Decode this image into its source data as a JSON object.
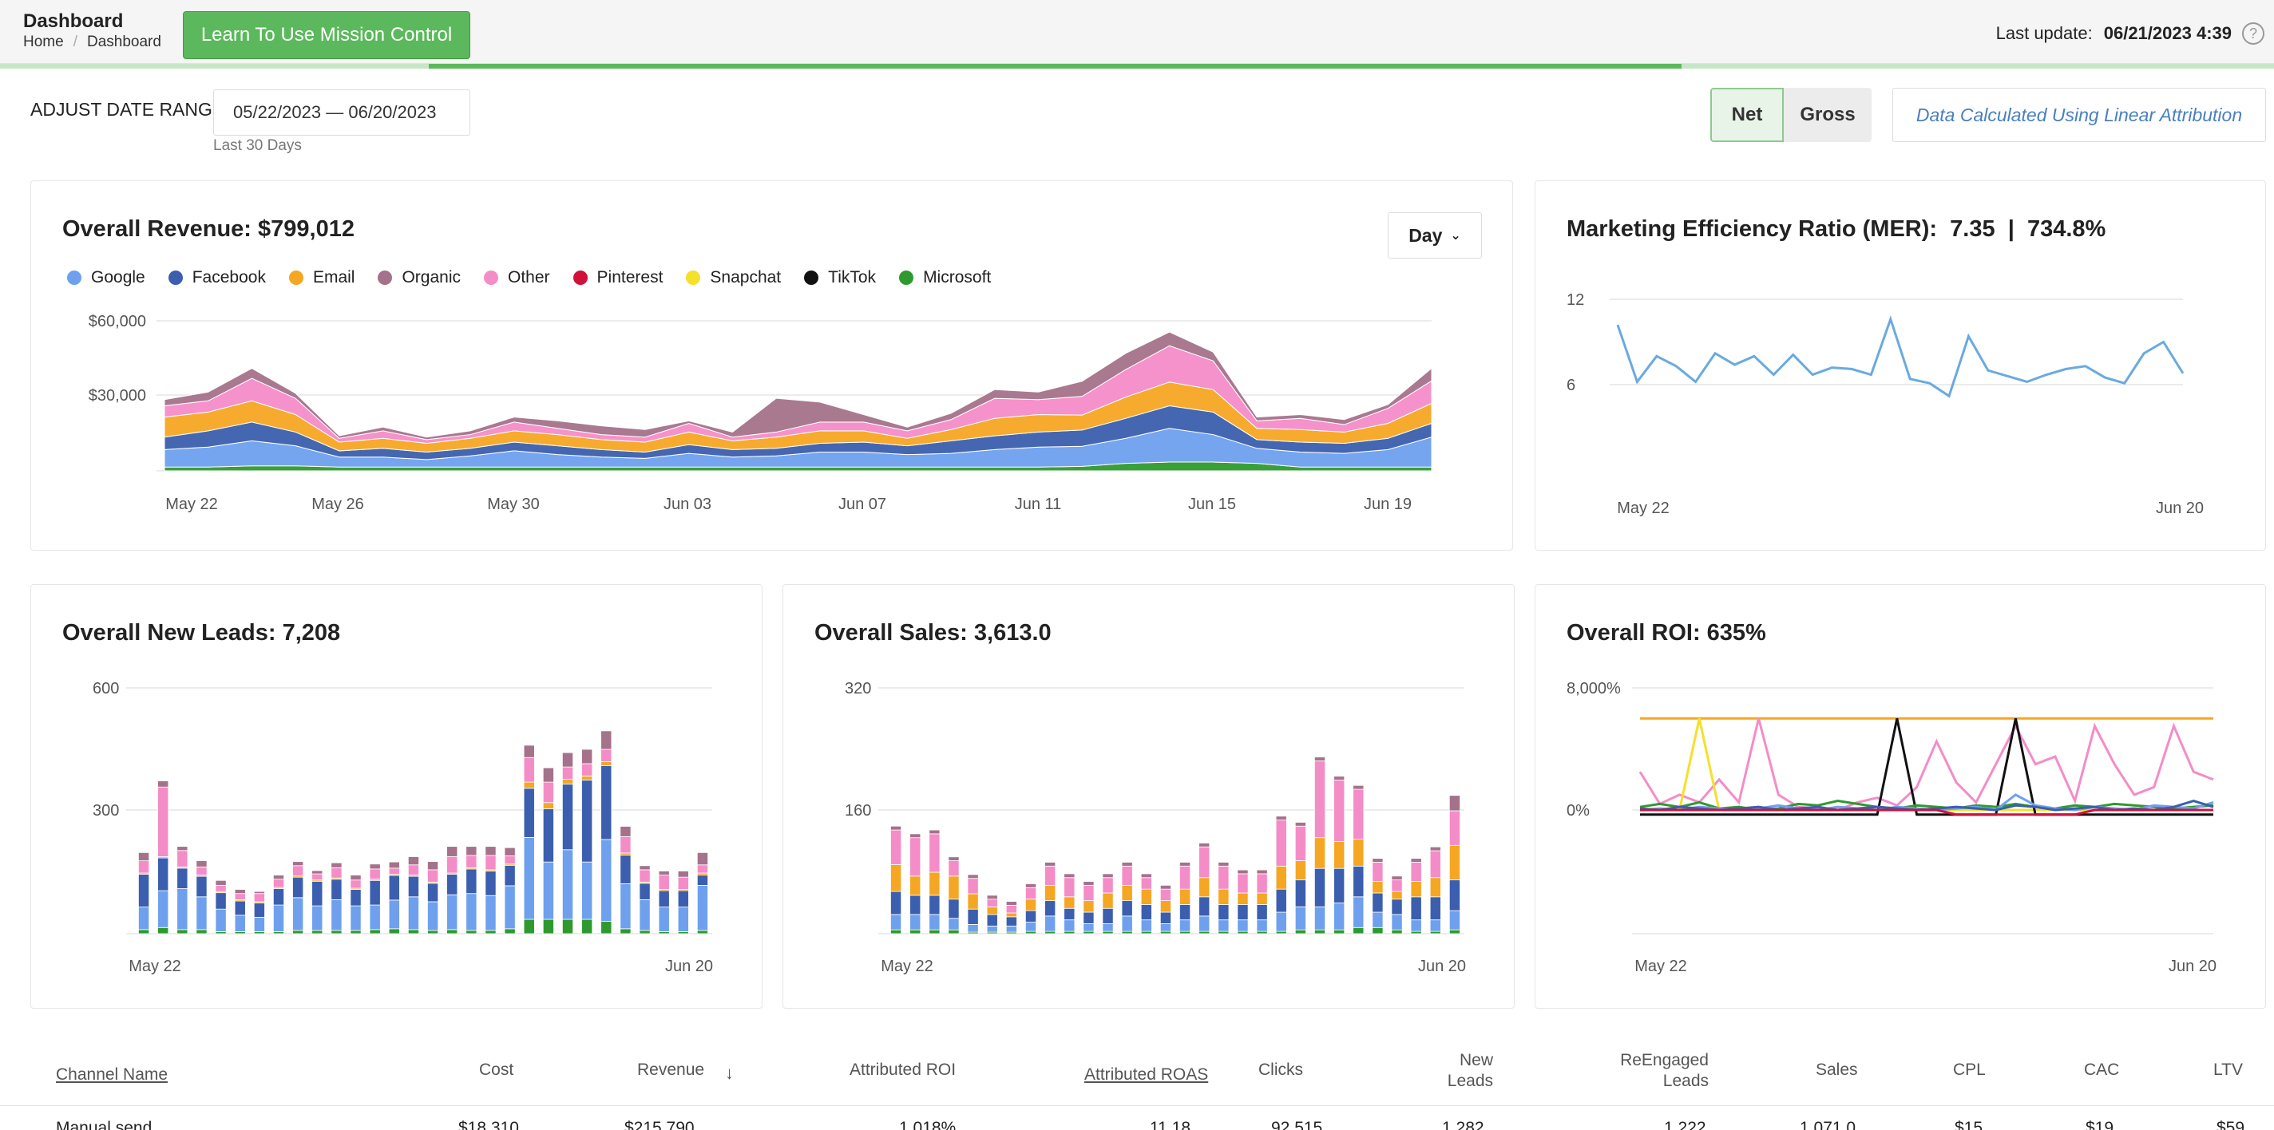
{
  "header": {
    "title": "Dashboard",
    "breadcrumb": [
      "Home",
      "Dashboard"
    ],
    "learn_button": "Learn To Use Mission Control",
    "last_update_label": "Last update:",
    "last_update_value": "06/21/2023 4:39",
    "help_icon": "question-circle-icon",
    "load_progress_fraction": 0.58
  },
  "filters": {
    "date_range_label": "ADJUST DATE RANGE:",
    "date_range_value": "05/22/2023 — 06/20/2023",
    "date_range_sub": "Last 30 Days",
    "toggle": [
      "Net",
      "Gross"
    ],
    "toggle_selected": "Net",
    "attribution_note": "Data Calculated Using Linear Attribution"
  },
  "colors": {
    "Google": "#6ea0ee",
    "Facebook": "#3b5fae",
    "Email": "#f5a623",
    "Organic": "#a4728a",
    "Other": "#f48cc8",
    "Pinterest": "#d0113a",
    "Snapchat": "#f5e02a",
    "TikTok": "#111111",
    "Microsoft": "#2e9a2e",
    "accent": "#5cb85c",
    "mer_line": "#6aaae0"
  },
  "revenue": {
    "title": "Overall Revenue: $799,012",
    "granularity": "Day",
    "legend": [
      "Google",
      "Facebook",
      "Email",
      "Organic",
      "Other",
      "Pinterest",
      "Snapchat",
      "TikTok",
      "Microsoft"
    ]
  },
  "mer": {
    "title": "Marketing Efficiency Ratio (MER):  7.35  |  734.8%"
  },
  "leads": {
    "title": "Overall New Leads: 7,208"
  },
  "sales": {
    "title": "Overall Sales: 3,613.0"
  },
  "roi": {
    "title": "Overall ROI: 635%"
  },
  "chart_data": [
    {
      "type": "area",
      "stacked": true,
      "ylim": [
        0,
        60000
      ],
      "yticks": [
        "$60,000",
        "$30,000"
      ],
      "xticks": [
        "May 22",
        "May 26",
        "May 30",
        "Jun 03",
        "Jun 07",
        "Jun 11",
        "Jun 15",
        "Jun 19"
      ],
      "x": [
        "May 22",
        "May 23",
        "May 24",
        "May 25",
        "May 26",
        "May 27",
        "May 28",
        "May 29",
        "May 30",
        "May 31",
        "Jun 01",
        "Jun 02",
        "Jun 03",
        "Jun 04",
        "Jun 05",
        "Jun 06",
        "Jun 07",
        "Jun 08",
        "Jun 09",
        "Jun 10",
        "Jun 11",
        "Jun 12",
        "Jun 13",
        "Jun 14",
        "Jun 15",
        "Jun 16",
        "Jun 17",
        "Jun 18",
        "Jun 19",
        "Jun 20"
      ],
      "series": [
        {
          "name": "Microsoft",
          "values": [
            1500,
            1500,
            2000,
            2000,
            1500,
            1500,
            1500,
            1500,
            1500,
            1500,
            1500,
            1500,
            1500,
            1500,
            1500,
            1500,
            1500,
            1500,
            1500,
            1500,
            1500,
            1800,
            3000,
            3500,
            3500,
            3000,
            1500,
            1500,
            1500,
            1500
          ]
        },
        {
          "name": "Google",
          "values": [
            7000,
            8000,
            10000,
            8000,
            4000,
            4000,
            3000,
            4500,
            6500,
            5000,
            4000,
            3500,
            5500,
            4000,
            4500,
            6000,
            6000,
            5000,
            5500,
            7000,
            8000,
            8000,
            10000,
            13500,
            11000,
            6000,
            6000,
            5500,
            7000,
            12000
          ]
        },
        {
          "name": "Facebook",
          "values": [
            5000,
            6500,
            7500,
            5500,
            2500,
            3500,
            3000,
            3000,
            3500,
            3500,
            3000,
            2500,
            3500,
            3000,
            3000,
            3500,
            4000,
            3500,
            5000,
            5500,
            6000,
            6500,
            8000,
            9000,
            9000,
            3500,
            4000,
            4000,
            4500,
            5500
          ]
        },
        {
          "name": "Email",
          "values": [
            8000,
            7500,
            8500,
            7000,
            3500,
            4000,
            3500,
            4000,
            4500,
            4500,
            4000,
            4000,
            5000,
            3500,
            4500,
            5000,
            4500,
            3000,
            4500,
            7000,
            7000,
            6000,
            8500,
            9500,
            9000,
            4500,
            5000,
            4500,
            6000,
            8000
          ]
        },
        {
          "name": "Other",
          "values": [
            4500,
            4500,
            9000,
            6500,
            1500,
            3000,
            1500,
            1500,
            3500,
            2500,
            2000,
            2000,
            3500,
            1500,
            2000,
            3500,
            3500,
            3000,
            4000,
            8000,
            6000,
            7500,
            11000,
            14500,
            11500,
            3000,
            4500,
            3000,
            6000,
            9000
          ]
        },
        {
          "name": "Organic",
          "values": [
            2500,
            3500,
            4000,
            2000,
            1000,
            1500,
            1000,
            1500,
            2000,
            3000,
            3500,
            3000,
            1000,
            2000,
            13500,
            8000,
            3000,
            1500,
            2500,
            3500,
            3000,
            6000,
            6500,
            5500,
            3500,
            1500,
            1500,
            2000,
            1500,
            5000
          ]
        }
      ]
    },
    {
      "type": "line",
      "ylim": [
        0,
        14
      ],
      "yticks": [
        "12",
        "6"
      ],
      "xticks": [
        "May 22",
        "Jun 20"
      ],
      "x_count": 30,
      "series": [
        {
          "name": "MER",
          "values": [
            10.2,
            6.2,
            8,
            7.3,
            6.2,
            8.2,
            7.4,
            8,
            6.7,
            8.1,
            6.7,
            7.2,
            7.1,
            6.7,
            10.6,
            6.4,
            6.1,
            5.2,
            9.4,
            7,
            6.6,
            6.2,
            6.7,
            7.1,
            7.3,
            6.5,
            6.1,
            8.2,
            9,
            6.8
          ]
        }
      ]
    },
    {
      "type": "bar",
      "stacked": true,
      "ylim": [
        0,
        600
      ],
      "yticks": [
        "600",
        "300"
      ],
      "xticks": [
        "May 22",
        "Jun 20"
      ],
      "x_count": 30,
      "series": [
        {
          "name": "Microsoft",
          "values": [
            10,
            15,
            10,
            10,
            5,
            5,
            5,
            5,
            8,
            8,
            8,
            8,
            10,
            12,
            10,
            8,
            10,
            8,
            8,
            12,
            35,
            35,
            35,
            35,
            30,
            12,
            8,
            5,
            5,
            8
          ]
        },
        {
          "name": "Google",
          "values": [
            55,
            90,
            100,
            80,
            55,
            40,
            35,
            65,
            80,
            60,
            75,
            60,
            60,
            70,
            80,
            70,
            85,
            90,
            85,
            105,
            200,
            140,
            170,
            140,
            200,
            110,
            75,
            60,
            60,
            110
          ]
        },
        {
          "name": "Facebook",
          "values": [
            80,
            80,
            50,
            50,
            40,
            35,
            35,
            40,
            50,
            60,
            50,
            40,
            60,
            60,
            50,
            45,
            50,
            60,
            60,
            50,
            120,
            130,
            160,
            200,
            180,
            70,
            40,
            40,
            40,
            25
          ]
        },
        {
          "name": "Email",
          "values": [
            3,
            3,
            3,
            3,
            3,
            3,
            3,
            3,
            3,
            3,
            3,
            3,
            3,
            3,
            3,
            3,
            3,
            3,
            3,
            3,
            15,
            15,
            12,
            10,
            10,
            5,
            3,
            3,
            3,
            5
          ]
        },
        {
          "name": "Other",
          "values": [
            30,
            170,
            40,
            20,
            15,
            15,
            20,
            20,
            25,
            15,
            25,
            20,
            25,
            15,
            25,
            30,
            40,
            30,
            35,
            20,
            60,
            50,
            30,
            30,
            30,
            40,
            30,
            35,
            30,
            20
          ]
        },
        {
          "name": "Organic",
          "values": [
            20,
            15,
            10,
            15,
            12,
            10,
            5,
            10,
            10,
            8,
            12,
            12,
            12,
            15,
            20,
            20,
            25,
            22,
            22,
            20,
            30,
            35,
            35,
            35,
            45,
            25,
            10,
            10,
            15,
            30
          ]
        }
      ]
    },
    {
      "type": "bar",
      "stacked": true,
      "ylim": [
        0,
        320
      ],
      "yticks": [
        "320",
        "160"
      ],
      "xticks": [
        "May 22",
        "Jun 20"
      ],
      "x_count": 30,
      "series": [
        {
          "name": "Microsoft",
          "values": [
            5,
            5,
            5,
            5,
            2,
            2,
            2,
            3,
            3,
            3,
            3,
            3,
            3,
            3,
            3,
            3,
            3,
            3,
            3,
            3,
            3,
            5,
            5,
            5,
            8,
            8,
            5,
            3,
            3,
            5
          ]
        },
        {
          "name": "Google",
          "values": [
            20,
            20,
            20,
            15,
            10,
            8,
            8,
            12,
            20,
            15,
            10,
            10,
            20,
            15,
            10,
            15,
            20,
            15,
            15,
            15,
            25,
            30,
            30,
            35,
            40,
            20,
            20,
            15,
            15,
            25
          ]
        },
        {
          "name": "Facebook",
          "values": [
            30,
            25,
            25,
            25,
            20,
            15,
            12,
            15,
            20,
            15,
            15,
            20,
            20,
            20,
            15,
            20,
            25,
            20,
            20,
            20,
            30,
            35,
            50,
            45,
            40,
            25,
            20,
            30,
            30,
            40
          ]
        },
        {
          "name": "Email",
          "values": [
            35,
            25,
            30,
            30,
            20,
            10,
            5,
            15,
            20,
            15,
            15,
            20,
            20,
            20,
            15,
            20,
            25,
            20,
            15,
            15,
            30,
            25,
            40,
            35,
            35,
            15,
            10,
            20,
            25,
            45
          ]
        },
        {
          "name": "Other",
          "values": [
            45,
            50,
            50,
            20,
            20,
            10,
            10,
            15,
            25,
            25,
            20,
            20,
            25,
            15,
            15,
            30,
            40,
            30,
            25,
            25,
            60,
            45,
            100,
            80,
            65,
            25,
            15,
            25,
            35,
            45
          ]
        },
        {
          "name": "Organic",
          "values": [
            5,
            5,
            5,
            5,
            5,
            5,
            5,
            5,
            5,
            5,
            5,
            5,
            5,
            5,
            5,
            5,
            5,
            5,
            5,
            5,
            5,
            5,
            5,
            5,
            5,
            5,
            5,
            5,
            5,
            20
          ]
        }
      ]
    },
    {
      "type": "line",
      "ylim": [
        -8000,
        8000
      ],
      "yticks": [
        "8,000%",
        "0%"
      ],
      "xticks": [
        "May 22",
        "Jun 20"
      ],
      "x_count": 30,
      "series": [
        {
          "name": "Email",
          "values": [
            6000,
            6000,
            6000,
            6000,
            6000,
            6000,
            6000,
            6000,
            6000,
            6000,
            6000,
            6000,
            6000,
            6000,
            6000,
            6000,
            6000,
            6000,
            6000,
            6000,
            6000,
            6000,
            6000,
            6000,
            6000,
            6000,
            6000,
            6000,
            6000,
            6000
          ]
        },
        {
          "name": "Other",
          "values": [
            2500,
            400,
            1000,
            500,
            2000,
            500,
            6000,
            1000,
            200,
            100,
            0,
            500,
            800,
            300,
            1500,
            4500,
            1800,
            500,
            3000,
            5500,
            3000,
            3500,
            600,
            5500,
            3000,
            1000,
            1500,
            5500,
            2500,
            2000
          ]
        },
        {
          "name": "Snapchat",
          "values": [
            0,
            0,
            0,
            6000,
            0,
            0,
            0,
            0,
            0,
            0,
            0,
            0,
            0,
            0,
            0,
            0,
            0,
            0,
            0,
            0,
            0,
            0,
            0,
            0,
            0,
            0,
            0,
            0,
            0,
            0
          ]
        },
        {
          "name": "TikTok",
          "values": [
            -300,
            -300,
            -300,
            -300,
            -300,
            -300,
            -300,
            -300,
            -300,
            -300,
            -300,
            -300,
            -300,
            6000,
            -300,
            -300,
            -300,
            -300,
            -300,
            6000,
            -300,
            -300,
            -300,
            -300,
            -300,
            -300,
            -300,
            -300,
            -300,
            -300
          ]
        },
        {
          "name": "Microsoft",
          "values": [
            200,
            400,
            200,
            500,
            100,
            200,
            0,
            100,
            400,
            300,
            600,
            400,
            200,
            100,
            300,
            200,
            100,
            300,
            200,
            400,
            200,
            100,
            300,
            200,
            400,
            300,
            200,
            100,
            200,
            300
          ]
        },
        {
          "name": "Google",
          "values": [
            0,
            100,
            0,
            200,
            100,
            0,
            100,
            300,
            100,
            0,
            200,
            100,
            0,
            200,
            100,
            0,
            100,
            200,
            0,
            1000,
            300,
            100,
            0,
            200,
            100,
            0,
            300,
            200,
            100,
            500
          ]
        },
        {
          "name": "Facebook",
          "values": [
            100,
            0,
            200,
            100,
            0,
            100,
            200,
            0,
            100,
            200,
            0,
            100,
            200,
            100,
            0,
            100,
            200,
            100,
            0,
            300,
            200,
            0,
            100,
            200,
            0,
            100,
            0,
            200,
            600,
            200
          ]
        },
        {
          "name": "Pinterest",
          "values": [
            0,
            0,
            0,
            0,
            0,
            0,
            0,
            0,
            0,
            0,
            0,
            0,
            0,
            0,
            0,
            0,
            -300,
            -300,
            -300,
            -300,
            -300,
            -300,
            -300,
            0,
            0,
            0,
            0,
            0,
            0,
            0
          ]
        }
      ]
    }
  ],
  "table": {
    "columns": [
      "Channel Name",
      "Cost",
      "Revenue",
      "Attributed ROI",
      "Attributed ROAS",
      "Clicks",
      "New Leads",
      "ReEngaged Leads",
      "Sales",
      "CPL",
      "CAC",
      "LTV"
    ],
    "sort_icon": "arrow-down-icon",
    "first_row_partial": [
      "Manual send",
      "$18,310",
      "$215,790",
      "1,018%",
      "11.18",
      "92,515",
      "1,282",
      "1,222",
      "1,071.0",
      "$15",
      "$19",
      "$59"
    ]
  }
}
